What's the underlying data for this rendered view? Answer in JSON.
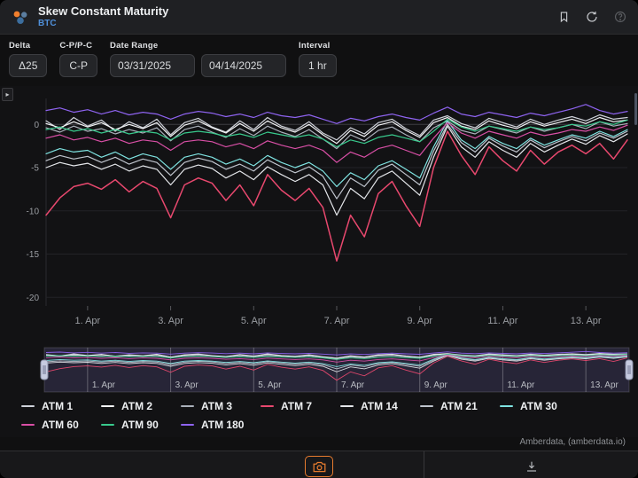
{
  "header": {
    "title": "Skew Constant Maturity",
    "subtitle": "BTC",
    "icons": [
      "bookmark-icon",
      "refresh-icon",
      "help-icon"
    ]
  },
  "controls": {
    "delta": {
      "label": "Delta",
      "value": "Δ25"
    },
    "cp_pc": {
      "label": "C-P/P-C",
      "value": "C-P"
    },
    "date_range": {
      "label": "Date Range",
      "start": "03/31/2025",
      "end": "04/14/2025"
    },
    "interval": {
      "label": "Interval",
      "value": "1 hr"
    }
  },
  "icons": {
    "panel_toggle": "▸"
  },
  "colors": {
    "accent_orange": "#e87c2e",
    "subtitle_blue": "#4f8fd9",
    "selection_purple": "rgba(126,116,196,0.20)",
    "grid": "#232327",
    "axis_text": "#9a9da2"
  },
  "attribution": "Amberdata, (amberdata.io)",
  "chart_data": {
    "type": "line",
    "title": "Skew Constant Maturity (BTC), Δ25, C-P, 1 hr",
    "x_range": {
      "start": "03/31/2025",
      "end": "04/14/2025",
      "step_hours": 8
    },
    "x_tick_labels": [
      "1. Apr",
      "3. Apr",
      "5. Apr",
      "7. Apr",
      "9. Apr",
      "11. Apr",
      "13. Apr"
    ],
    "x_tick_positions": [
      3,
      9,
      15,
      21,
      27,
      33,
      39
    ],
    "y_ticks": [
      0,
      -5,
      -10,
      -15,
      -20
    ],
    "ylim": [
      -21,
      3
    ],
    "grid": "horizontal",
    "legend_position": "bottom",
    "legend_rows": [
      7,
      3
    ],
    "series": [
      {
        "name": "ATM 1",
        "color": "#cfd2da",
        "values": [
          0.4,
          -0.6,
          0.8,
          -0.2,
          0.5,
          -0.8,
          0.3,
          -0.4,
          0.6,
          -1.2,
          0.2,
          0.7,
          -0.3,
          -0.9,
          0.4,
          -0.6,
          0.8,
          -0.2,
          -0.7,
          0.3,
          -1.0,
          -1.8,
          -0.4,
          -1.1,
          0.2,
          0.6,
          -0.5,
          -1.3,
          0.5,
          1.0,
          0.1,
          -0.4,
          0.7,
          0.2,
          -0.3,
          0.6,
          0.0,
          0.5,
          0.9,
          0.4,
          1.1,
          0.6,
          0.8
        ]
      },
      {
        "name": "ATM 2",
        "color": "#f2f3f5",
        "values": [
          0.1,
          -0.4,
          0.3,
          -0.3,
          0.2,
          -0.6,
          0.0,
          -0.5,
          0.2,
          -1.4,
          -0.1,
          0.4,
          -0.4,
          -1.0,
          0.1,
          -0.8,
          0.4,
          -0.4,
          -0.9,
          0.0,
          -1.2,
          -2.2,
          -0.7,
          -1.4,
          -0.1,
          0.3,
          -0.7,
          -1.5,
          0.2,
          0.8,
          -0.2,
          -0.6,
          0.4,
          -0.1,
          -0.5,
          0.3,
          -0.2,
          0.2,
          0.6,
          0.1,
          0.8,
          0.3,
          0.5
        ]
      },
      {
        "name": "ATM 3",
        "color": "#aab0ba",
        "values": [
          -0.4,
          -0.9,
          -0.2,
          -0.8,
          -0.5,
          -1.1,
          -0.6,
          -1.0,
          -0.4,
          -1.9,
          -0.6,
          -0.2,
          -0.9,
          -1.5,
          -0.5,
          -1.3,
          -0.2,
          -0.9,
          -1.4,
          -0.6,
          -1.7,
          -2.8,
          -1.2,
          -1.9,
          -0.7,
          -0.3,
          -1.2,
          -2.0,
          -0.4,
          0.4,
          -0.7,
          -1.1,
          -0.2,
          -0.6,
          -1.0,
          -0.3,
          -0.8,
          -0.4,
          0.0,
          -0.5,
          0.3,
          -0.2,
          0.1
        ]
      },
      {
        "name": "ATM 7",
        "color": "#e8486e",
        "values": [
          -10.5,
          -8.5,
          -7.2,
          -6.8,
          -7.5,
          -6.4,
          -7.8,
          -6.6,
          -7.4,
          -10.8,
          -7.0,
          -6.2,
          -6.8,
          -8.8,
          -7.0,
          -9.4,
          -5.8,
          -7.6,
          -8.8,
          -7.4,
          -9.6,
          -15.8,
          -10.5,
          -13.0,
          -8.0,
          -6.6,
          -9.4,
          -11.8,
          -5.0,
          -0.8,
          -3.6,
          -5.8,
          -2.6,
          -4.2,
          -5.4,
          -3.0,
          -4.6,
          -3.2,
          -2.4,
          -3.4,
          -2.2,
          -4.0,
          -1.8
        ]
      },
      {
        "name": "ATM 14",
        "color": "#e4e6ea",
        "values": [
          -5.0,
          -4.4,
          -4.8,
          -4.5,
          -5.2,
          -4.6,
          -5.4,
          -4.8,
          -5.2,
          -7.0,
          -5.2,
          -4.7,
          -5.1,
          -6.2,
          -5.4,
          -6.4,
          -4.9,
          -5.8,
          -6.6,
          -5.8,
          -7.0,
          -10.5,
          -7.4,
          -8.6,
          -6.2,
          -5.4,
          -6.8,
          -8.2,
          -3.8,
          -0.2,
          -2.6,
          -3.8,
          -2.0,
          -3.0,
          -3.8,
          -2.2,
          -3.2,
          -2.4,
          -1.7,
          -2.3,
          -1.3,
          -2.0,
          -1.1
        ]
      },
      {
        "name": "ATM 21",
        "color": "#bfc4cd",
        "values": [
          -4.2,
          -3.6,
          -4.0,
          -3.7,
          -4.4,
          -3.8,
          -4.6,
          -4.0,
          -4.4,
          -5.9,
          -4.4,
          -3.9,
          -4.3,
          -5.2,
          -4.6,
          -5.4,
          -4.1,
          -4.9,
          -5.6,
          -4.9,
          -6.0,
          -8.6,
          -6.2,
          -7.2,
          -5.3,
          -4.6,
          -5.8,
          -7.0,
          -3.1,
          0.0,
          -2.1,
          -3.2,
          -1.6,
          -2.5,
          -3.2,
          -1.8,
          -2.7,
          -2.0,
          -1.4,
          -1.9,
          -1.0,
          -1.6,
          -0.8
        ]
      },
      {
        "name": "ATM 30",
        "color": "#7fe3e1",
        "values": [
          -3.4,
          -2.8,
          -3.2,
          -3.0,
          -3.8,
          -3.2,
          -4.0,
          -3.4,
          -3.8,
          -5.2,
          -3.8,
          -3.4,
          -3.8,
          -4.6,
          -4.0,
          -4.8,
          -3.6,
          -4.4,
          -5.0,
          -4.4,
          -5.4,
          -7.2,
          -5.6,
          -6.4,
          -4.8,
          -4.2,
          -5.2,
          -6.2,
          -2.6,
          0.4,
          -1.8,
          -2.8,
          -1.4,
          -2.2,
          -2.8,
          -1.6,
          -2.4,
          -1.8,
          -1.2,
          -1.6,
          -0.8,
          -1.4,
          -0.6
        ]
      },
      {
        "name": "ATM 60",
        "color": "#d94fa6",
        "values": [
          -1.6,
          -1.2,
          -1.8,
          -1.5,
          -2.0,
          -1.6,
          -2.2,
          -1.8,
          -2.0,
          -3.0,
          -2.0,
          -1.8,
          -2.0,
          -2.6,
          -2.2,
          -2.8,
          -1.9,
          -2.4,
          -2.8,
          -2.4,
          -3.0,
          -4.4,
          -3.2,
          -3.8,
          -2.8,
          -2.4,
          -3.0,
          -3.6,
          -1.6,
          0.2,
          -1.0,
          -1.6,
          -0.8,
          -1.2,
          -1.6,
          -0.9,
          -1.3,
          -1.0,
          -0.6,
          -0.8,
          -0.3,
          -0.7,
          -0.1
        ]
      },
      {
        "name": "ATM 90",
        "color": "#38c98c",
        "values": [
          -0.6,
          -0.3,
          -0.8,
          -0.5,
          -1.0,
          -0.6,
          -1.1,
          -0.8,
          -1.0,
          -1.8,
          -1.0,
          -0.8,
          -1.0,
          -1.4,
          -1.1,
          -1.5,
          -0.9,
          -1.2,
          -1.5,
          -1.2,
          -1.7,
          -2.6,
          -1.8,
          -2.2,
          -1.5,
          -1.2,
          -1.6,
          -2.0,
          -0.8,
          0.6,
          -0.3,
          -0.8,
          -0.2,
          -0.5,
          -0.8,
          -0.3,
          -0.6,
          -0.4,
          0.0,
          -0.2,
          0.3,
          0.0,
          0.5
        ]
      },
      {
        "name": "ATM 180",
        "color": "#8e63f0",
        "values": [
          1.6,
          1.9,
          1.4,
          1.7,
          1.2,
          1.6,
          1.1,
          1.4,
          1.2,
          0.6,
          1.2,
          1.5,
          1.3,
          0.9,
          1.2,
          0.8,
          1.4,
          1.0,
          0.8,
          1.1,
          0.6,
          0.1,
          0.7,
          0.4,
          0.9,
          1.2,
          0.8,
          0.5,
          1.3,
          2.0,
          1.2,
          0.9,
          1.4,
          1.1,
          0.8,
          1.3,
          1.0,
          1.4,
          1.8,
          2.3,
          1.6,
          1.2,
          1.5
        ]
      }
    ]
  }
}
